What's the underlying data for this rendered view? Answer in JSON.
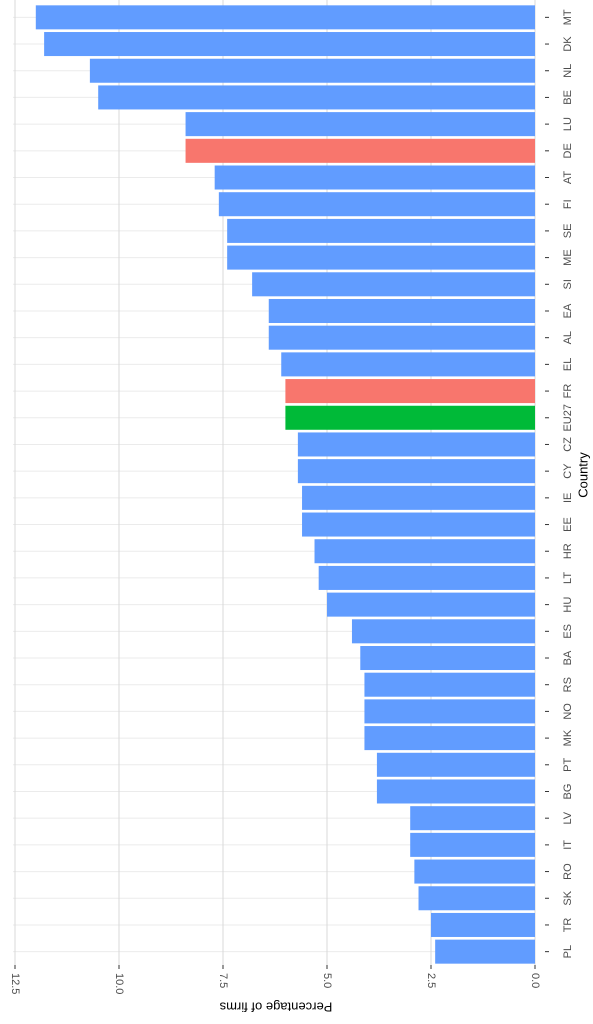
{
  "chart_data": {
    "type": "bar",
    "orientation": "horizontal",
    "x_label": "Percentage of firms",
    "y_label": "Country",
    "categories": [
      "MT",
      "DK",
      "NL",
      "BE",
      "LU",
      "DE",
      "AT",
      "FI",
      "SE",
      "ME",
      "SI",
      "EA",
      "AL",
      "EL",
      "FR",
      "EU27",
      "CZ",
      "CY",
      "IE",
      "EE",
      "HR",
      "LT",
      "HU",
      "ES",
      "BA",
      "RS",
      "NO",
      "MK",
      "PT",
      "BG",
      "LV",
      "IT",
      "RO",
      "SK",
      "TR",
      "PL"
    ],
    "values": [
      12.0,
      11.8,
      10.7,
      10.5,
      8.4,
      8.4,
      7.7,
      7.6,
      7.4,
      7.4,
      6.8,
      6.4,
      6.4,
      6.1,
      6.0,
      6.0,
      5.7,
      5.7,
      5.6,
      5.6,
      5.3,
      5.2,
      5.0,
      4.4,
      4.2,
      4.1,
      4.1,
      4.1,
      3.8,
      3.8,
      3.0,
      3.0,
      2.9,
      2.8,
      2.5,
      2.4
    ],
    "colors": [
      "#619cff",
      "#619cff",
      "#619cff",
      "#619cff",
      "#619cff",
      "#f8766d",
      "#619cff",
      "#619cff",
      "#619cff",
      "#619cff",
      "#619cff",
      "#619cff",
      "#619cff",
      "#619cff",
      "#f8766d",
      "#00ba38",
      "#619cff",
      "#619cff",
      "#619cff",
      "#619cff",
      "#619cff",
      "#619cff",
      "#619cff",
      "#619cff",
      "#619cff",
      "#619cff",
      "#619cff",
      "#619cff",
      "#619cff",
      "#619cff",
      "#619cff",
      "#619cff",
      "#619cff",
      "#619cff",
      "#619cff",
      "#619cff"
    ],
    "xlim": [
      0,
      12.5
    ],
    "xticks": [
      {
        "value": 0,
        "label": "0.0"
      },
      {
        "value": 2.5,
        "label": "2.5"
      },
      {
        "value": 5,
        "label": "5.0"
      },
      {
        "value": 7.5,
        "label": "7.5"
      },
      {
        "value": 10,
        "label": "10.0"
      },
      {
        "value": 12.5,
        "label": "12.5"
      }
    ],
    "grid": true
  }
}
